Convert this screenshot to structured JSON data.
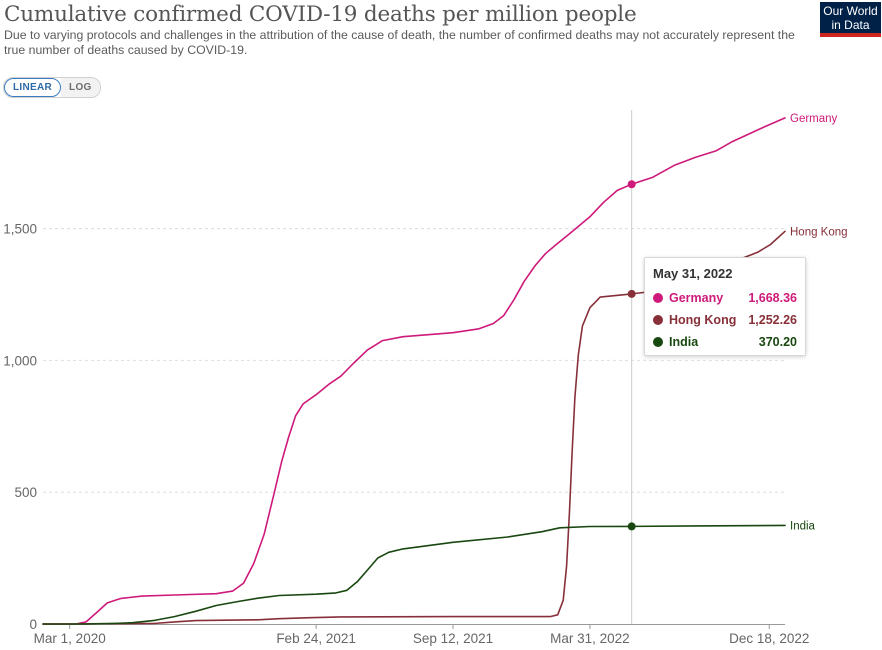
{
  "header": {
    "title": "Cumulative confirmed COVID-19 deaths per million people",
    "subtitle": "Due to varying protocols and challenges in the attribution of the cause of death, the number of confirmed deaths may not accurately represent the true number of deaths caused by COVID-19."
  },
  "logo": {
    "line1": "Our World",
    "line2": "in Data"
  },
  "scale_toggle": {
    "linear_label": "LINEAR",
    "log_label": "LOG",
    "active": "linear"
  },
  "tooltip": {
    "date": "May 31, 2022",
    "rows": [
      {
        "name": "Germany",
        "value": "1,668.36",
        "color": "#ce1a7a"
      },
      {
        "name": "Hong Kong",
        "value": "1,252.26",
        "color": "#883039"
      },
      {
        "name": "India",
        "value": "370.20",
        "color": "#18470f"
      }
    ]
  },
  "chart_data": {
    "type": "line",
    "title": "Cumulative confirmed COVID-19 deaths per million people",
    "x_ticks": [
      "Mar 1, 2020",
      "Feb 24, 2021",
      "Sep 12, 2021",
      "Mar 31, 2022",
      "Dec 18, 2022"
    ],
    "y_ticks": [
      "0",
      "500",
      "1,000",
      "1,500"
    ],
    "x_range": [
      "2020-01-22",
      "2023-01-10"
    ],
    "ylim": [
      0,
      1950
    ],
    "grid": "horizontal dashed",
    "legend": "line-end labels",
    "hover_date": "2022-05-31",
    "series": [
      {
        "name": "Germany",
        "color": "#ce1a7a",
        "points": [
          [
            "2020-01-22",
            0
          ],
          [
            "2020-03-10",
            0
          ],
          [
            "2020-03-25",
            8
          ],
          [
            "2020-04-10",
            45
          ],
          [
            "2020-04-25",
            80
          ],
          [
            "2020-05-15",
            97
          ],
          [
            "2020-06-15",
            106
          ],
          [
            "2020-08-01",
            110
          ],
          [
            "2020-10-01",
            115
          ],
          [
            "2020-10-25",
            125
          ],
          [
            "2020-11-10",
            155
          ],
          [
            "2020-11-25",
            230
          ],
          [
            "2020-12-10",
            340
          ],
          [
            "2020-12-25",
            500
          ],
          [
            "2021-01-05",
            620
          ],
          [
            "2021-01-15",
            710
          ],
          [
            "2021-01-25",
            790
          ],
          [
            "2021-02-05",
            835
          ],
          [
            "2021-02-24",
            870
          ],
          [
            "2021-03-15",
            910
          ],
          [
            "2021-04-01",
            940
          ],
          [
            "2021-04-20",
            990
          ],
          [
            "2021-05-10",
            1040
          ],
          [
            "2021-06-01",
            1075
          ],
          [
            "2021-07-01",
            1090
          ],
          [
            "2021-09-12",
            1105
          ],
          [
            "2021-10-20",
            1120
          ],
          [
            "2021-11-10",
            1140
          ],
          [
            "2021-11-25",
            1170
          ],
          [
            "2021-12-10",
            1230
          ],
          [
            "2021-12-25",
            1300
          ],
          [
            "2022-01-10",
            1360
          ],
          [
            "2022-01-25",
            1405
          ],
          [
            "2022-02-10",
            1440
          ],
          [
            "2022-03-01",
            1480
          ],
          [
            "2022-03-31",
            1545
          ],
          [
            "2022-04-20",
            1600
          ],
          [
            "2022-05-10",
            1645
          ],
          [
            "2022-05-31",
            1668.36
          ],
          [
            "2022-07-01",
            1695
          ],
          [
            "2022-08-01",
            1740
          ],
          [
            "2022-09-01",
            1770
          ],
          [
            "2022-10-01",
            1795
          ],
          [
            "2022-10-25",
            1830
          ],
          [
            "2022-11-15",
            1855
          ],
          [
            "2022-12-10",
            1885
          ],
          [
            "2023-01-10",
            1920
          ]
        ]
      },
      {
        "name": "Hong Kong",
        "color": "#883039",
        "points": [
          [
            "2020-01-22",
            0
          ],
          [
            "2020-03-10",
            0
          ],
          [
            "2020-04-15",
            1
          ],
          [
            "2020-07-01",
            2
          ],
          [
            "2020-08-01",
            8
          ],
          [
            "2020-09-01",
            13
          ],
          [
            "2020-12-01",
            16
          ],
          [
            "2021-01-01",
            20
          ],
          [
            "2021-02-15",
            24
          ],
          [
            "2021-04-01",
            27
          ],
          [
            "2021-09-12",
            28
          ],
          [
            "2022-02-01",
            28
          ],
          [
            "2022-02-12",
            35
          ],
          [
            "2022-02-20",
            90
          ],
          [
            "2022-02-25",
            220
          ],
          [
            "2022-03-01",
            420
          ],
          [
            "2022-03-05",
            650
          ],
          [
            "2022-03-09",
            860
          ],
          [
            "2022-03-14",
            1020
          ],
          [
            "2022-03-20",
            1130
          ],
          [
            "2022-03-31",
            1200
          ],
          [
            "2022-04-15",
            1240
          ],
          [
            "2022-05-31",
            1252.26
          ],
          [
            "2022-07-01",
            1262
          ],
          [
            "2022-08-01",
            1285
          ],
          [
            "2022-09-01",
            1310
          ],
          [
            "2022-10-01",
            1340
          ],
          [
            "2022-11-01",
            1380
          ],
          [
            "2022-12-01",
            1410
          ],
          [
            "2022-12-20",
            1440
          ],
          [
            "2023-01-10",
            1490
          ]
        ]
      },
      {
        "name": "India",
        "color": "#18470f",
        "points": [
          [
            "2020-01-22",
            0
          ],
          [
            "2020-03-25",
            0
          ],
          [
            "2020-05-01",
            2
          ],
          [
            "2020-06-01",
            5
          ],
          [
            "2020-07-01",
            13
          ],
          [
            "2020-08-01",
            28
          ],
          [
            "2020-09-01",
            48
          ],
          [
            "2020-10-01",
            70
          ],
          [
            "2020-11-01",
            85
          ],
          [
            "2020-12-01",
            98
          ],
          [
            "2021-01-01",
            108
          ],
          [
            "2021-02-24",
            113
          ],
          [
            "2021-03-25",
            118
          ],
          [
            "2021-04-10",
            128
          ],
          [
            "2021-04-25",
            160
          ],
          [
            "2021-05-10",
            205
          ],
          [
            "2021-05-25",
            250
          ],
          [
            "2021-06-10",
            272
          ],
          [
            "2021-07-01",
            285
          ],
          [
            "2021-09-12",
            310
          ],
          [
            "2021-12-01",
            330
          ],
          [
            "2022-01-20",
            350
          ],
          [
            "2022-02-15",
            365
          ],
          [
            "2022-03-31",
            370
          ],
          [
            "2022-05-31",
            370.2
          ],
          [
            "2022-09-01",
            372
          ],
          [
            "2023-01-10",
            374
          ]
        ]
      }
    ]
  }
}
